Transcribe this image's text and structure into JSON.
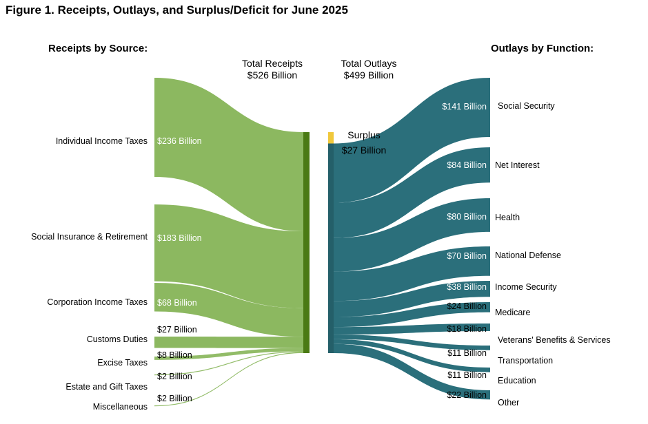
{
  "title": "Figure 1. Receipts, Outlays, and Surplus/Deficit for June 2025",
  "receipts_heading": "Receipts by Source:",
  "outlays_heading": "Outlays by Function:",
  "total_receipts": {
    "line1": "Total Receipts",
    "line2": "$526 Billion"
  },
  "total_outlays": {
    "line1": "Total Outlays",
    "line2": "$499 Billion"
  },
  "surplus": {
    "line1": "Surplus",
    "line2": "$27 Billion"
  },
  "colors": {
    "receipts": "#8cb860",
    "receipts_bar": "#4a7a14",
    "outlays": "#2b6f7b",
    "outlays_bar": "#245f69",
    "surplus": "#f0c83c"
  },
  "chart_data": {
    "type": "sankey",
    "title": "Figure 1. Receipts, Outlays, and Surplus/Deficit for June 2025",
    "units": "Billion",
    "total_receipts": 526,
    "total_outlays": 499,
    "surplus": 27,
    "receipts": [
      {
        "name": "Individual Income Taxes",
        "value": 236,
        "value_label": "$236 Billion"
      },
      {
        "name": "Social Insurance & Retirement",
        "value": 183,
        "value_label": "$183 Billion"
      },
      {
        "name": "Corporation Income Taxes",
        "value": 68,
        "value_label": "$68 Billion"
      },
      {
        "name": "Customs Duties",
        "value": 27,
        "value_label": "$27 Billion"
      },
      {
        "name": "Excise Taxes",
        "value": 8,
        "value_label": "$8 Billion"
      },
      {
        "name": "Estate and Gift Taxes",
        "value": 2,
        "value_label": "$2 Billion"
      },
      {
        "name": "Miscellaneous",
        "value": 2,
        "value_label": "$2 Billion"
      }
    ],
    "outlays": [
      {
        "name": "Social Security",
        "value": 141,
        "value_label": "$141 Billion"
      },
      {
        "name": "Net Interest",
        "value": 84,
        "value_label": "$84 Billion"
      },
      {
        "name": "Health",
        "value": 80,
        "value_label": "$80 Billion"
      },
      {
        "name": "National Defense",
        "value": 70,
        "value_label": "$70 Billion"
      },
      {
        "name": "Income Security",
        "value": 38,
        "value_label": "$38 Billion"
      },
      {
        "name": "Medicare",
        "value": 24,
        "value_label": "$24 Billion"
      },
      {
        "name": "Veterans' Benefits & Services",
        "value": 18,
        "value_label": "$18 Billion"
      },
      {
        "name": "Transportation",
        "value": 11,
        "value_label": "$11 Billion"
      },
      {
        "name": "Education",
        "value": 11,
        "value_label": "$11 Billion"
      },
      {
        "name": "Other",
        "value": 22,
        "value_label": "$22 Billion"
      }
    ]
  }
}
